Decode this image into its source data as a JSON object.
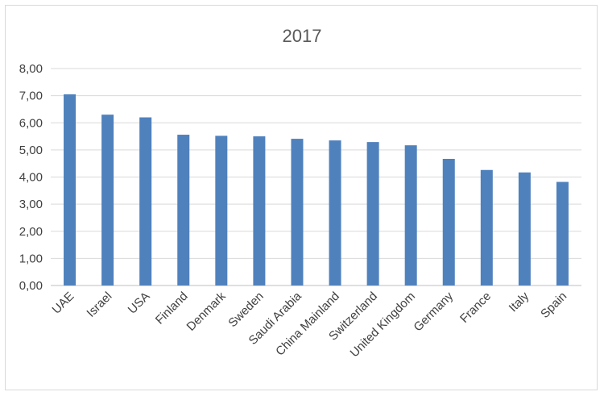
{
  "chart_data": {
    "type": "bar",
    "title": "2017",
    "xlabel": "",
    "ylabel": "",
    "categories": [
      "UAE",
      "Israel",
      "USA",
      "Finland",
      "Denmark",
      "Sweden",
      "Saudi Arabia",
      "China Mainland",
      "Switzerland",
      "United Kingdom",
      "Germany",
      "France",
      "Italy",
      "Spain"
    ],
    "values": [
      7.05,
      6.3,
      6.2,
      5.56,
      5.52,
      5.5,
      5.41,
      5.35,
      5.29,
      5.17,
      4.67,
      4.26,
      4.17,
      3.82
    ],
    "ylim": [
      0,
      8
    ],
    "yticks": [
      "0,00",
      "1,00",
      "2,00",
      "3,00",
      "4,00",
      "5,00",
      "6,00",
      "7,00",
      "8,00"
    ],
    "grid": true,
    "legend": "none",
    "bar_color": "#4f81bd"
  }
}
